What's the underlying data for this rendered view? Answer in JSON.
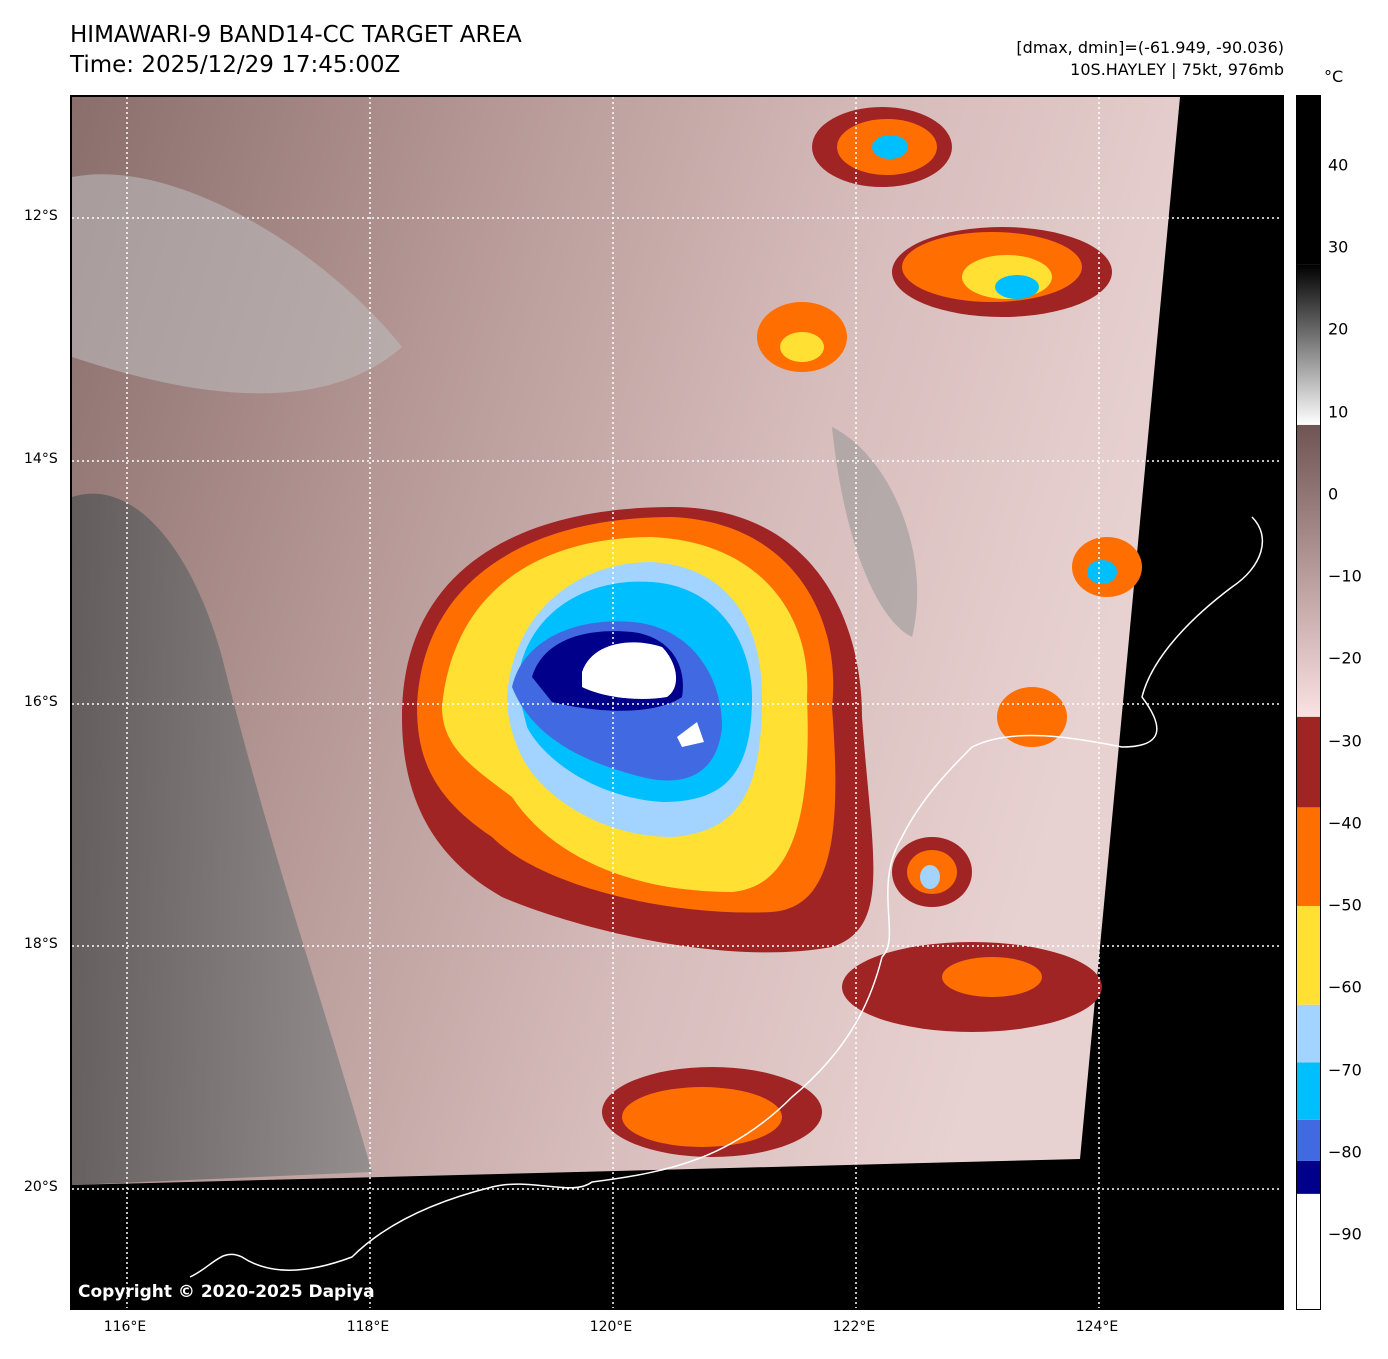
{
  "header": {
    "title": "HIMAWARI-9 BAND14-CC TARGET AREA",
    "time": "Time: 2025/12/29 17:45:00Z",
    "dminmax": "[dmax, dmin]=(-61.949, -90.036)",
    "storm": "10S.HAYLEY | 75kt, 976mb"
  },
  "map": {
    "copyright": "Copyright © 2020-2025 Dapiya",
    "lon_labels": [
      "116°E",
      "118°E",
      "120°E",
      "122°E",
      "124°E"
    ],
    "lat_labels": [
      "12°S",
      "14°S",
      "16°S",
      "18°S",
      "20°S"
    ]
  },
  "colorbar": {
    "unit": "°C",
    "range": [
      -99,
      48.5
    ],
    "ticks": [
      40,
      30,
      20,
      10,
      0,
      -10,
      -20,
      -30,
      -40,
      -50,
      -60,
      -70,
      -80,
      -90
    ],
    "tick_labels": [
      "40",
      "30",
      "20",
      "10",
      "0",
      "−10",
      "−20",
      "−30",
      "−40",
      "−50",
      "−60",
      "−70",
      "−80",
      "−90"
    ],
    "segments": [
      {
        "from": -99,
        "to": -85,
        "color": "#ffffff"
      },
      {
        "from": -85,
        "to": -81,
        "color": "#00008b"
      },
      {
        "from": -81,
        "to": -76,
        "color": "#4169e1"
      },
      {
        "from": -76,
        "to": -69,
        "color": "#00bfff"
      },
      {
        "from": -69,
        "to": -62,
        "color": "#a3d4ff"
      },
      {
        "from": -62,
        "to": -50,
        "color": "#ffe033"
      },
      {
        "from": -50,
        "to": -38,
        "color": "#ff6e00"
      },
      {
        "from": -38,
        "to": -27,
        "color": "#a02424"
      }
    ]
  }
}
